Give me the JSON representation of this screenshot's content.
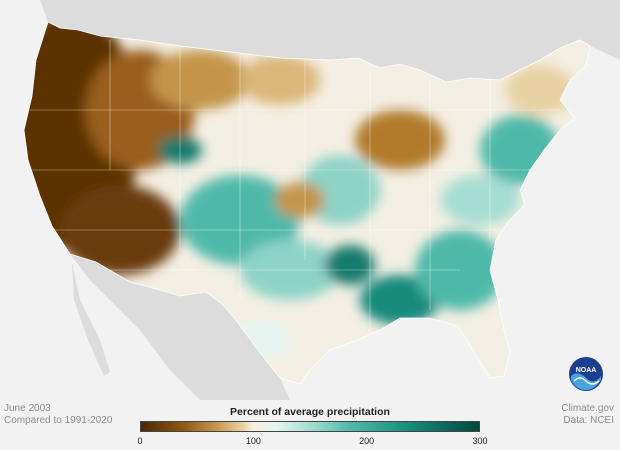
{
  "caption": {
    "date": "June 2003",
    "comparison": "Compared to 1991-2020",
    "credit": "Climate.gov",
    "source": "Data: NCEI"
  },
  "legend": {
    "title": "Percent of average precipitation",
    "ticks": [
      "0",
      "100",
      "200",
      "300"
    ],
    "tick_values": [
      0,
      100,
      200,
      300
    ],
    "range": [
      0,
      300
    ],
    "colors": [
      "#4a2a08",
      "#8a5512",
      "#c4954a",
      "#e8d2a3",
      "#f6efe0",
      "#e7f4f1",
      "#a6ddd3",
      "#4fb9a9",
      "#168a7c",
      "#00483f"
    ],
    "color_stops": [
      0,
      0.12,
      0.22,
      0.3,
      0.33,
      0.4,
      0.5,
      0.62,
      0.8,
      1
    ]
  },
  "logo": {
    "label": "NOAA",
    "icon": "noaa-logo-icon"
  },
  "map_colors": {
    "background": "#f2f2f2",
    "land_outside": "#dcdcdc",
    "very_dry": "#5b3006",
    "dry": "#9a5f1a",
    "near_avg_dry": "#dcb77b",
    "near_avg": "#f4efe4",
    "wet": "#8fd3c7",
    "very_wet": "#137b6c"
  }
}
